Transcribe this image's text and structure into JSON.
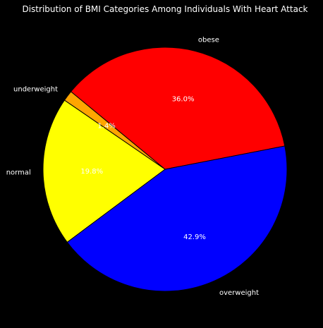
{
  "chart_data": {
    "type": "pie",
    "title": "Distribution of BMI Categories Among Individuals With Heart Attack",
    "slices": [
      {
        "label": "obese",
        "value": 36.0,
        "pct_label": "36.0%",
        "color": "#ff0000"
      },
      {
        "label": "underweight",
        "value": 1.4,
        "pct_label": "1.4%",
        "color": "#ffa500"
      },
      {
        "label": "normal",
        "value": 19.8,
        "pct_label": "19.8%",
        "color": "#ffff00"
      },
      {
        "label": "overweight",
        "value": 42.9,
        "pct_label": "42.9%",
        "color": "#0000ff"
      }
    ],
    "start_angle_deg": 11,
    "direction": "counterclockwise",
    "background": "#000000"
  }
}
